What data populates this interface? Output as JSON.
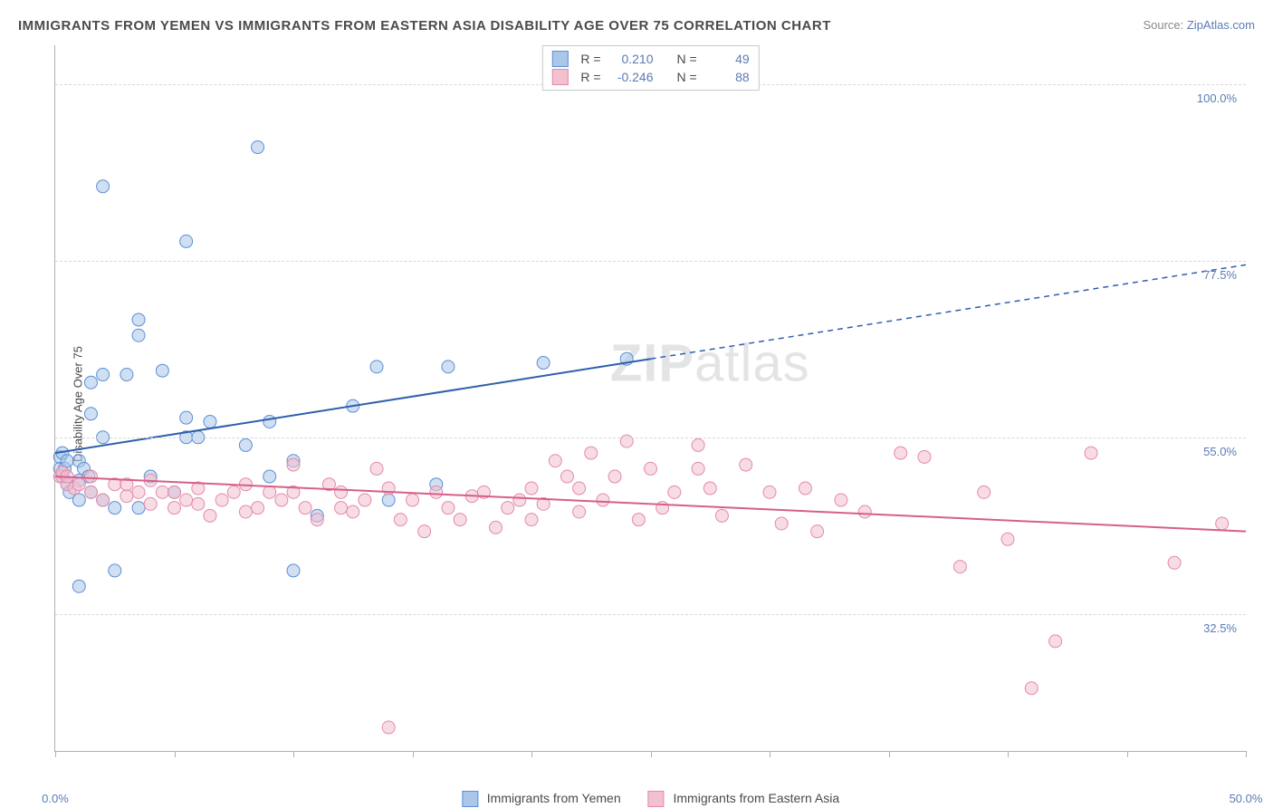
{
  "title": "IMMIGRANTS FROM YEMEN VS IMMIGRANTS FROM EASTERN ASIA DISABILITY AGE OVER 75 CORRELATION CHART",
  "source_label": "Source: ",
  "source_name": "ZipAtlas.com",
  "watermark_zip": "ZIP",
  "watermark_atlas": "atlas",
  "chart": {
    "type": "scatter",
    "ylabel": "Disability Age Over 75",
    "xlim": [
      0,
      50
    ],
    "ylim": [
      15,
      105
    ],
    "x_ticks": [
      0,
      5,
      10,
      15,
      20,
      25,
      30,
      35,
      40,
      45,
      50
    ],
    "x_tick_labels": {
      "min": "0.0%",
      "max": "50.0%"
    },
    "y_gridlines": [
      32.5,
      55.0,
      77.5,
      100.0
    ],
    "y_tick_labels": [
      "32.5%",
      "55.0%",
      "77.5%",
      "100.0%"
    ],
    "background_color": "#ffffff",
    "grid_color": "#d8d8d8",
    "axis_color": "#b0b0b0",
    "tick_label_color": "#5b7bb4",
    "marker_radius": 7,
    "marker_opacity": 0.55,
    "line_width": 2,
    "series": [
      {
        "name": "Immigrants from Yemen",
        "color_stroke": "#5b8fd6",
        "color_fill": "#aac6e8",
        "line_color": "#2e5fad",
        "R": "0.210",
        "N": "49",
        "trend": {
          "x1": 0,
          "y1": 53,
          "x2": 25,
          "y2": 65,
          "x3": 50,
          "y3": 77,
          "solid_until_x": 25
        },
        "points": [
          [
            0.2,
            51
          ],
          [
            0.2,
            52.5
          ],
          [
            0.3,
            50
          ],
          [
            0.3,
            53
          ],
          [
            0.4,
            51
          ],
          [
            0.5,
            49
          ],
          [
            0.5,
            52
          ],
          [
            0.6,
            48
          ],
          [
            1.0,
            47
          ],
          [
            1.0,
            49.5
          ],
          [
            1.0,
            52
          ],
          [
            1.2,
            51
          ],
          [
            1.4,
            50
          ],
          [
            1.5,
            58
          ],
          [
            1.5,
            62
          ],
          [
            1.5,
            48
          ],
          [
            2.0,
            47
          ],
          [
            2.0,
            55
          ],
          [
            2.0,
            63
          ],
          [
            2.0,
            87
          ],
          [
            2.5,
            38
          ],
          [
            2.5,
            46
          ],
          [
            3.0,
            63
          ],
          [
            3.5,
            46
          ],
          [
            3.5,
            68
          ],
          [
            3.5,
            70
          ],
          [
            4.0,
            50
          ],
          [
            4.5,
            63.5
          ],
          [
            5.0,
            48
          ],
          [
            5.5,
            55
          ],
          [
            5.5,
            57.5
          ],
          [
            5.5,
            80
          ],
          [
            6.0,
            55
          ],
          [
            6.5,
            57
          ],
          [
            8.0,
            54
          ],
          [
            8.5,
            92
          ],
          [
            9.0,
            50
          ],
          [
            9.0,
            57
          ],
          [
            10.0,
            52
          ],
          [
            10.0,
            38
          ],
          [
            11.0,
            45
          ],
          [
            12.5,
            59
          ],
          [
            13.5,
            64
          ],
          [
            14.0,
            47
          ],
          [
            16.0,
            49
          ],
          [
            16.5,
            64
          ],
          [
            20.5,
            64.5
          ],
          [
            24.0,
            65
          ],
          [
            1.0,
            36
          ]
        ]
      },
      {
        "name": "Immigrants from Eastern Asia",
        "color_stroke": "#e48aa8",
        "color_fill": "#f3c0d0",
        "line_color": "#d65f8a",
        "R": "-0.246",
        "N": "88",
        "trend": {
          "x1": 0,
          "y1": 50,
          "x2": 50,
          "y2": 43,
          "solid_until_x": 50
        },
        "points": [
          [
            0.2,
            50
          ],
          [
            0.3,
            50.5
          ],
          [
            0.5,
            49
          ],
          [
            0.5,
            50
          ],
          [
            0.8,
            48.5
          ],
          [
            1.0,
            49
          ],
          [
            1.5,
            48
          ],
          [
            1.5,
            50
          ],
          [
            2.0,
            47
          ],
          [
            2.5,
            49
          ],
          [
            3.0,
            47.5
          ],
          [
            3.0,
            49
          ],
          [
            3.5,
            48
          ],
          [
            4.0,
            46.5
          ],
          [
            4.0,
            49.5
          ],
          [
            4.5,
            48
          ],
          [
            5.0,
            46
          ],
          [
            5.0,
            48
          ],
          [
            5.5,
            47
          ],
          [
            6.0,
            46.5
          ],
          [
            6.0,
            48.5
          ],
          [
            6.5,
            45
          ],
          [
            7.0,
            47
          ],
          [
            7.5,
            48
          ],
          [
            8.0,
            45.5
          ],
          [
            8.0,
            49
          ],
          [
            8.5,
            46
          ],
          [
            9.0,
            48
          ],
          [
            9.5,
            47
          ],
          [
            10.0,
            51.5
          ],
          [
            10.0,
            48
          ],
          [
            10.5,
            46
          ],
          [
            11.0,
            44.5
          ],
          [
            11.5,
            49
          ],
          [
            12.0,
            46
          ],
          [
            12.0,
            48
          ],
          [
            12.5,
            45.5
          ],
          [
            13.0,
            47
          ],
          [
            13.5,
            51
          ],
          [
            14.0,
            48.5
          ],
          [
            14.5,
            44.5
          ],
          [
            15.0,
            47
          ],
          [
            15.5,
            43
          ],
          [
            16.0,
            48
          ],
          [
            16.5,
            46
          ],
          [
            17.0,
            44.5
          ],
          [
            17.5,
            47.5
          ],
          [
            18.0,
            48
          ],
          [
            18.5,
            43.5
          ],
          [
            19.0,
            46
          ],
          [
            19.5,
            47
          ],
          [
            20.0,
            48.5
          ],
          [
            20.0,
            44.5
          ],
          [
            20.5,
            46.5
          ],
          [
            21.0,
            52
          ],
          [
            21.5,
            50
          ],
          [
            22.0,
            48.5
          ],
          [
            22.0,
            45.5
          ],
          [
            22.5,
            53
          ],
          [
            23.0,
            47
          ],
          [
            23.5,
            50
          ],
          [
            24.0,
            54.5
          ],
          [
            24.5,
            44.5
          ],
          [
            25.0,
            51
          ],
          [
            25.5,
            46
          ],
          [
            26.0,
            48
          ],
          [
            27.0,
            54
          ],
          [
            27.0,
            51
          ],
          [
            27.5,
            48.5
          ],
          [
            28.0,
            45
          ],
          [
            29.0,
            51.5
          ],
          [
            30.0,
            48
          ],
          [
            30.5,
            44
          ],
          [
            31.5,
            48.5
          ],
          [
            32.0,
            43
          ],
          [
            33.0,
            47
          ],
          [
            34.0,
            45.5
          ],
          [
            35.5,
            53
          ],
          [
            36.5,
            52.5
          ],
          [
            38.0,
            38.5
          ],
          [
            39.0,
            48
          ],
          [
            40.0,
            42
          ],
          [
            41.0,
            23
          ],
          [
            42.0,
            29
          ],
          [
            43.5,
            53
          ],
          [
            47.0,
            39
          ],
          [
            49.0,
            44
          ],
          [
            14.0,
            18
          ]
        ]
      }
    ]
  },
  "legend": {
    "r_label": "R =",
    "n_label": "N ="
  }
}
